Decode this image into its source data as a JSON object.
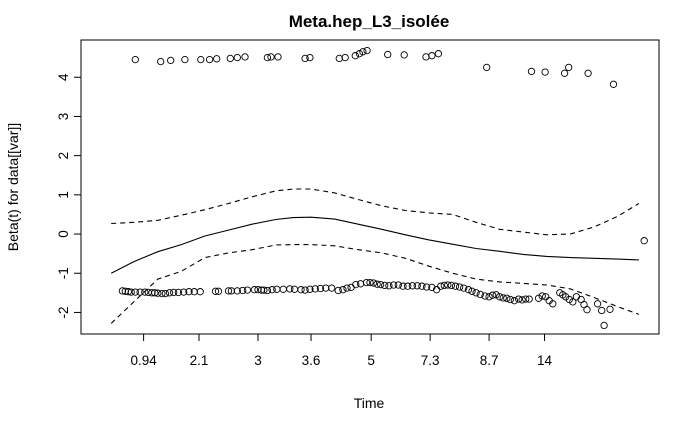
{
  "chart_data": {
    "type": "scatter",
    "title": "Meta.hep_L3_isolée",
    "xlabel": "Time",
    "ylabel": "Beta(t) for data[[var]]",
    "x_ticks": [
      "0.94",
      "2.1",
      "3",
      "3.6",
      "5",
      "7.3",
      "8.7",
      "14"
    ],
    "y_ticks": [
      -2,
      -1,
      0,
      1,
      2,
      3,
      4
    ],
    "ylim": [
      -2.55,
      4.95
    ],
    "grid": false,
    "legend": "none",
    "x_axis_note": "Time axis is plotted on a transformed (rank-like) scale; x values given as positions relative to tick labels 0.94, 2.1, 3, 3.6, 5, 7.3, 8.7, 14 at 1..8",
    "series": [
      {
        "kind": "points",
        "style": "open-circle",
        "points": [
          [
            0.6,
            -1.45
          ],
          [
            0.65,
            -1.46
          ],
          [
            0.7,
            -1.47
          ],
          [
            0.75,
            -1.48
          ],
          [
            0.82,
            -1.48
          ],
          [
            0.9,
            -1.48
          ],
          [
            0.98,
            -1.48
          ],
          [
            1.04,
            -1.49
          ],
          [
            1.1,
            -1.5
          ],
          [
            1.15,
            -1.5
          ],
          [
            1.2,
            -1.51
          ],
          [
            1.27,
            -1.52
          ],
          [
            1.33,
            -1.52
          ],
          [
            1.4,
            -1.5
          ],
          [
            1.47,
            -1.49
          ],
          [
            1.55,
            -1.49
          ],
          [
            1.64,
            -1.48
          ],
          [
            1.73,
            -1.47
          ],
          [
            1.82,
            -1.47
          ],
          [
            1.92,
            -1.47
          ],
          [
            2.18,
            -1.46
          ],
          [
            2.23,
            -1.46
          ],
          [
            2.4,
            -1.45
          ],
          [
            2.45,
            -1.45
          ],
          [
            2.55,
            -1.45
          ],
          [
            2.64,
            -1.44
          ],
          [
            2.72,
            -1.43
          ],
          [
            2.84,
            -1.42
          ],
          [
            2.9,
            -1.42
          ],
          [
            2.96,
            -1.43
          ],
          [
            3.0,
            -1.43
          ],
          [
            3.06,
            -1.44
          ],
          [
            3.14,
            -1.42
          ],
          [
            3.22,
            -1.41
          ],
          [
            3.33,
            -1.41
          ],
          [
            3.44,
            -1.4
          ],
          [
            3.52,
            -1.41
          ],
          [
            3.63,
            -1.42
          ],
          [
            3.7,
            -1.43
          ],
          [
            3.78,
            -1.41
          ],
          [
            3.87,
            -1.4
          ],
          [
            3.96,
            -1.39
          ],
          [
            4.05,
            -1.38
          ],
          [
            4.15,
            -1.38
          ],
          [
            4.26,
            -1.44
          ],
          [
            4.34,
            -1.42
          ],
          [
            4.41,
            -1.38
          ],
          [
            4.48,
            -1.36
          ],
          [
            4.56,
            -1.29
          ],
          [
            4.64,
            -1.27
          ],
          [
            4.74,
            -1.24
          ],
          [
            4.8,
            -1.24
          ],
          [
            4.86,
            -1.25
          ],
          [
            4.92,
            -1.28
          ],
          [
            4.98,
            -1.29
          ],
          [
            5.05,
            -1.31
          ],
          [
            5.12,
            -1.32
          ],
          [
            5.2,
            -1.3
          ],
          [
            5.28,
            -1.3
          ],
          [
            5.36,
            -1.33
          ],
          [
            5.44,
            -1.33
          ],
          [
            5.52,
            -1.32
          ],
          [
            5.6,
            -1.32
          ],
          [
            5.68,
            -1.33
          ],
          [
            5.76,
            -1.35
          ],
          [
            5.85,
            -1.36
          ],
          [
            5.93,
            -1.42
          ],
          [
            6.0,
            -1.33
          ],
          [
            6.06,
            -1.31
          ],
          [
            6.12,
            -1.3
          ],
          [
            6.18,
            -1.31
          ],
          [
            6.25,
            -1.33
          ],
          [
            6.32,
            -1.35
          ],
          [
            6.39,
            -1.38
          ],
          [
            6.47,
            -1.42
          ],
          [
            6.53,
            -1.46
          ],
          [
            6.6,
            -1.5
          ],
          [
            6.67,
            -1.54
          ],
          [
            6.75,
            -1.58
          ],
          [
            6.82,
            -1.6
          ],
          [
            6.88,
            -1.56
          ],
          [
            6.94,
            -1.55
          ],
          [
            7.0,
            -1.6
          ],
          [
            7.06,
            -1.63
          ],
          [
            7.12,
            -1.64
          ],
          [
            7.18,
            -1.67
          ],
          [
            7.25,
            -1.7
          ],
          [
            7.32,
            -1.66
          ],
          [
            7.38,
            -1.68
          ],
          [
            7.44,
            -1.66
          ],
          [
            7.5,
            -1.66
          ],
          [
            7.66,
            -1.64
          ],
          [
            7.72,
            -1.58
          ],
          [
            7.78,
            -1.6
          ],
          [
            7.84,
            -1.7
          ],
          [
            7.9,
            -1.78
          ],
          [
            8.02,
            -1.5
          ],
          [
            8.07,
            -1.55
          ],
          [
            8.12,
            -1.6
          ],
          [
            8.18,
            -1.67
          ],
          [
            8.24,
            -1.73
          ],
          [
            8.3,
            -1.6
          ],
          [
            8.38,
            -1.67
          ],
          [
            8.43,
            -1.8
          ],
          [
            8.48,
            -1.93
          ],
          [
            8.66,
            -1.78
          ],
          [
            8.73,
            -1.95
          ],
          [
            8.77,
            -2.33
          ],
          [
            8.87,
            -1.92
          ],
          [
            0.82,
            4.45
          ],
          [
            1.25,
            4.4
          ],
          [
            1.42,
            4.43
          ],
          [
            1.66,
            4.45
          ],
          [
            1.93,
            4.45
          ],
          [
            2.08,
            4.45
          ],
          [
            2.2,
            4.47
          ],
          [
            2.43,
            4.48
          ],
          [
            2.55,
            4.5
          ],
          [
            2.68,
            4.52
          ],
          [
            3.06,
            4.5
          ],
          [
            3.12,
            4.52
          ],
          [
            3.24,
            4.52
          ],
          [
            3.7,
            4.48
          ],
          [
            3.78,
            4.5
          ],
          [
            4.28,
            4.48
          ],
          [
            4.38,
            4.5
          ],
          [
            4.55,
            4.55
          ],
          [
            4.62,
            4.6
          ],
          [
            4.68,
            4.65
          ],
          [
            4.75,
            4.68
          ],
          [
            5.1,
            4.58
          ],
          [
            5.38,
            4.57
          ],
          [
            5.75,
            4.52
          ],
          [
            5.85,
            4.55
          ],
          [
            5.96,
            4.6
          ],
          [
            6.78,
            4.25
          ],
          [
            7.54,
            4.15
          ],
          [
            7.77,
            4.13
          ],
          [
            8.1,
            4.1
          ],
          [
            8.17,
            4.25
          ],
          [
            8.5,
            4.1
          ],
          [
            8.93,
            3.82
          ]
        ]
      },
      {
        "kind": "line",
        "style": "solid",
        "name": "",
        "points": [
          [
            0.41,
            -1.0
          ],
          [
            0.8,
            -0.7
          ],
          [
            1.2,
            -0.45
          ],
          [
            1.6,
            -0.27
          ],
          [
            2.0,
            -0.05
          ],
          [
            2.4,
            0.1
          ],
          [
            2.8,
            0.25
          ],
          [
            3.2,
            0.37
          ],
          [
            3.5,
            0.42
          ],
          [
            3.8,
            0.43
          ],
          [
            4.2,
            0.38
          ],
          [
            4.6,
            0.25
          ],
          [
            5.0,
            0.12
          ],
          [
            5.4,
            -0.02
          ],
          [
            5.8,
            -0.15
          ],
          [
            6.2,
            -0.26
          ],
          [
            6.6,
            -0.37
          ],
          [
            7.0,
            -0.44
          ],
          [
            7.4,
            -0.52
          ],
          [
            7.8,
            -0.57
          ],
          [
            8.2,
            -0.6
          ],
          [
            8.6,
            -0.62
          ],
          [
            9.0,
            -0.64
          ],
          [
            9.36,
            -0.66
          ]
        ]
      },
      {
        "kind": "line",
        "style": "dashed",
        "name": "",
        "points": [
          [
            0.41,
            0.27
          ],
          [
            0.8,
            0.3
          ],
          [
            1.2,
            0.35
          ],
          [
            1.6,
            0.48
          ],
          [
            2.0,
            0.62
          ],
          [
            2.4,
            0.78
          ],
          [
            2.8,
            0.95
          ],
          [
            3.2,
            1.1
          ],
          [
            3.5,
            1.15
          ],
          [
            3.8,
            1.15
          ],
          [
            4.2,
            1.05
          ],
          [
            4.6,
            0.88
          ],
          [
            5.0,
            0.72
          ],
          [
            5.4,
            0.6
          ],
          [
            5.8,
            0.54
          ],
          [
            6.2,
            0.5
          ],
          [
            6.6,
            0.3
          ],
          [
            7.0,
            0.12
          ],
          [
            7.4,
            0.05
          ],
          [
            7.8,
            -0.02
          ],
          [
            8.2,
            0.0
          ],
          [
            8.6,
            0.18
          ],
          [
            9.0,
            0.45
          ],
          [
            9.36,
            0.78
          ]
        ]
      },
      {
        "kind": "line",
        "style": "dashed",
        "name": "",
        "points": [
          [
            0.41,
            -2.28
          ],
          [
            0.8,
            -1.72
          ],
          [
            1.2,
            -1.15
          ],
          [
            1.6,
            -0.95
          ],
          [
            2.0,
            -0.6
          ],
          [
            2.4,
            -0.48
          ],
          [
            2.8,
            -0.4
          ],
          [
            3.2,
            -0.28
          ],
          [
            3.5,
            -0.27
          ],
          [
            3.8,
            -0.27
          ],
          [
            4.2,
            -0.3
          ],
          [
            4.6,
            -0.4
          ],
          [
            5.0,
            -0.48
          ],
          [
            5.4,
            -0.62
          ],
          [
            5.8,
            -0.82
          ],
          [
            6.2,
            -1.0
          ],
          [
            6.6,
            -1.15
          ],
          [
            7.0,
            -1.22
          ],
          [
            7.4,
            -1.26
          ],
          [
            7.8,
            -1.3
          ],
          [
            8.2,
            -1.4
          ],
          [
            8.6,
            -1.62
          ],
          [
            9.0,
            -1.85
          ],
          [
            9.36,
            -2.05
          ]
        ]
      },
      {
        "kind": "points",
        "style": "open-circle",
        "points": [
          [
            9.45,
            -0.17
          ]
        ]
      }
    ]
  }
}
